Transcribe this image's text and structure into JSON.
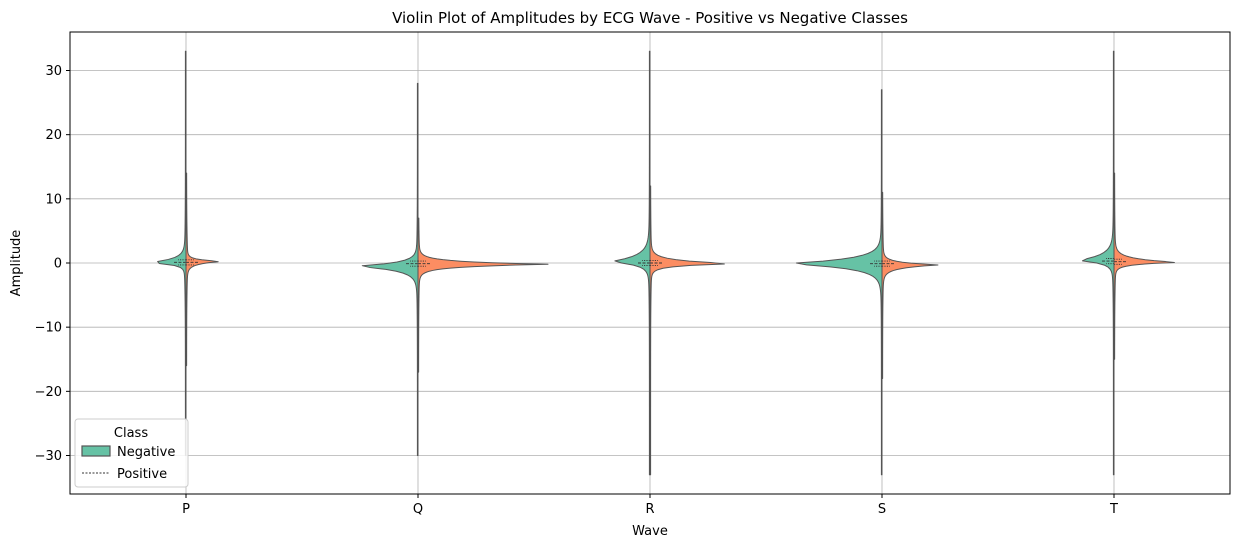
{
  "chart_data": {
    "type": "violin",
    "title": "Violin Plot of Amplitudes by ECG Wave - Positive vs Negative Classes",
    "xlabel": "Wave",
    "ylabel": "Amplitude",
    "categories": [
      "P",
      "Q",
      "R",
      "S",
      "T"
    ],
    "ylim": [
      -36,
      36
    ],
    "yticks": [
      -30,
      -20,
      -10,
      0,
      10,
      20,
      30
    ],
    "ytick_labels": [
      "−30",
      "−20",
      "−10",
      "0",
      "10",
      "20",
      "30"
    ],
    "grid": true,
    "legend": {
      "title": "Class",
      "placement": "lower-left"
    },
    "series": [
      {
        "name": "Negative",
        "color": "#66c2a5",
        "min": [
          -30,
          -30,
          -33,
          -33,
          -33
        ],
        "max": [
          33,
          28,
          33,
          27,
          33
        ],
        "median": [
          0.1,
          -0.1,
          0.0,
          -0.1,
          0.3
        ]
      },
      {
        "name": "Positive",
        "color": "#fc8d62",
        "min": [
          -16,
          -17,
          -33,
          -18,
          -15
        ],
        "max": [
          14,
          7,
          12,
          11,
          14
        ],
        "median": [
          0.1,
          -0.1,
          0.0,
          -0.1,
          0.2
        ]
      }
    ]
  }
}
